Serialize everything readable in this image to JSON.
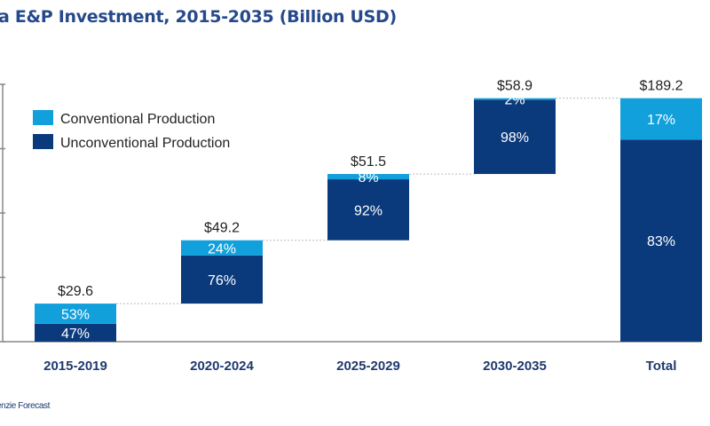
{
  "title": "a E&P Investment, 2015-2035 (Billion USD)",
  "source": "enzie Forecast",
  "chart_data": {
    "type": "bar",
    "subtype": "waterfall-stacked",
    "title": "a E&P Investment, 2015-2035 (Billion USD)",
    "categories": [
      "2015-2019",
      "2020-2024",
      "2025-2029",
      "2030-2035",
      "Total"
    ],
    "totals": [
      29.6,
      49.2,
      51.5,
      58.9,
      189.2
    ],
    "total_labels": [
      "$29.6",
      "$49.2",
      "$51.5",
      "$58.9",
      "$189.2"
    ],
    "series": [
      {
        "name": "Unconventional Production",
        "color": "#0b3a7c",
        "percent": [
          47,
          76,
          92,
          98,
          83
        ],
        "labels": [
          "47%",
          "76%",
          "92%",
          "98%",
          "83%"
        ]
      },
      {
        "name": "Conventional Production",
        "color": "#12a0dc",
        "percent": [
          53,
          24,
          8,
          2,
          17
        ],
        "labels": [
          "53%",
          "24%",
          "8%",
          "2%",
          "17%"
        ]
      }
    ],
    "ylim": [
      0,
      200
    ],
    "yticks": [
      0,
      50,
      100,
      150,
      200
    ],
    "legend": "top-left"
  }
}
